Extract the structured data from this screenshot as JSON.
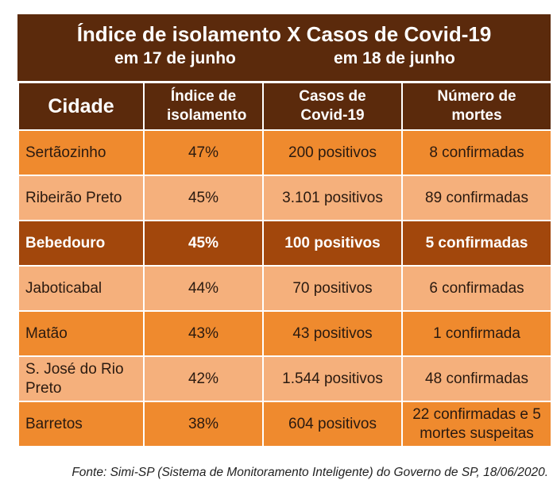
{
  "title": {
    "line": "Índice de isolamento X Casos de Covid-19",
    "date_left": "em 17 de junho",
    "date_right": "em 18 de junho"
  },
  "table": {
    "headers": [
      "Cidade",
      "Índice de isolamento",
      "Casos de Covid-19",
      "Número de mortes"
    ],
    "rows": [
      [
        "Sertãozinho",
        "47%",
        "200 positivos",
        "8 confirmadas"
      ],
      [
        "Ribeirão Preto",
        "45%",
        "3.101 positivos",
        "89 confirmadas"
      ],
      [
        "Bebedouro",
        "45%",
        "100 positivos",
        "5 confirmadas"
      ],
      [
        "Jaboticabal",
        "44%",
        "70 positivos",
        "6 confirmadas"
      ],
      [
        "Matão",
        "43%",
        "43 positivos",
        "1 confirmada"
      ],
      [
        "S. José do Rio Preto",
        "42%",
        "1.544 positivos",
        "48 confirmadas"
      ],
      [
        "Barretos",
        "38%",
        "604 positivos",
        "22 confirmadas e 5 mortes suspeitas"
      ]
    ],
    "highlighted_row": 2
  },
  "source": "Fonte: Simi-SP (Sistema de Monitoramento Inteligente) do Governo de SP, 18/06/2020."
}
